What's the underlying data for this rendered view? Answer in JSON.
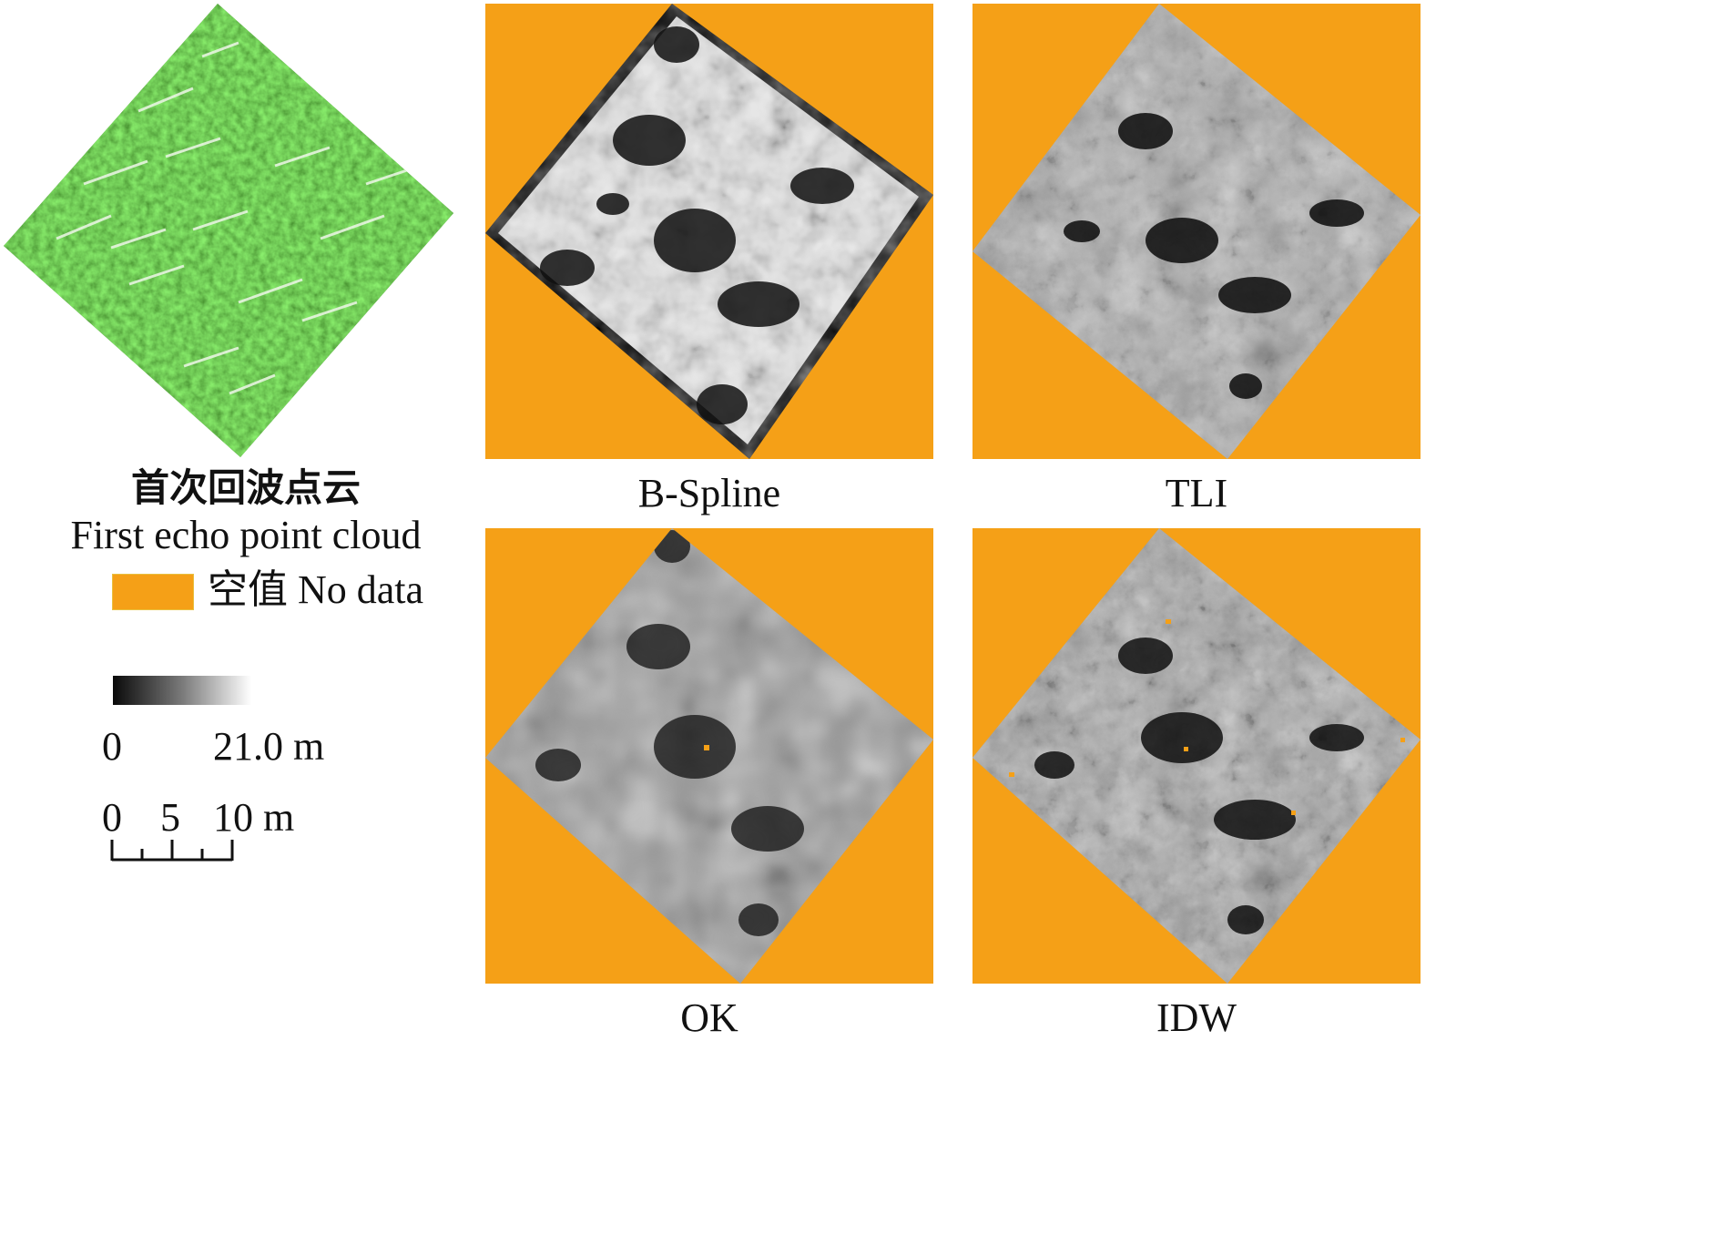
{
  "point_cloud": {
    "title_cn": "首次回波点云",
    "title_en": "First echo point cloud"
  },
  "legend": {
    "nodata_label": "空值 No data",
    "nodata_color": "#f5a017",
    "ramp_min": "0",
    "ramp_max": "21.0 m"
  },
  "scalebar": {
    "ticks": [
      "0",
      "5",
      "10 m"
    ]
  },
  "panels": [
    {
      "id": "bspline",
      "label": "B-Spline"
    },
    {
      "id": "tli",
      "label": "TLI"
    },
    {
      "id": "ok",
      "label": "OK"
    },
    {
      "id": "idw",
      "label": "IDW"
    }
  ],
  "colors": {
    "nodata": "#f5a017",
    "vegetation": "#3f8a2a"
  }
}
